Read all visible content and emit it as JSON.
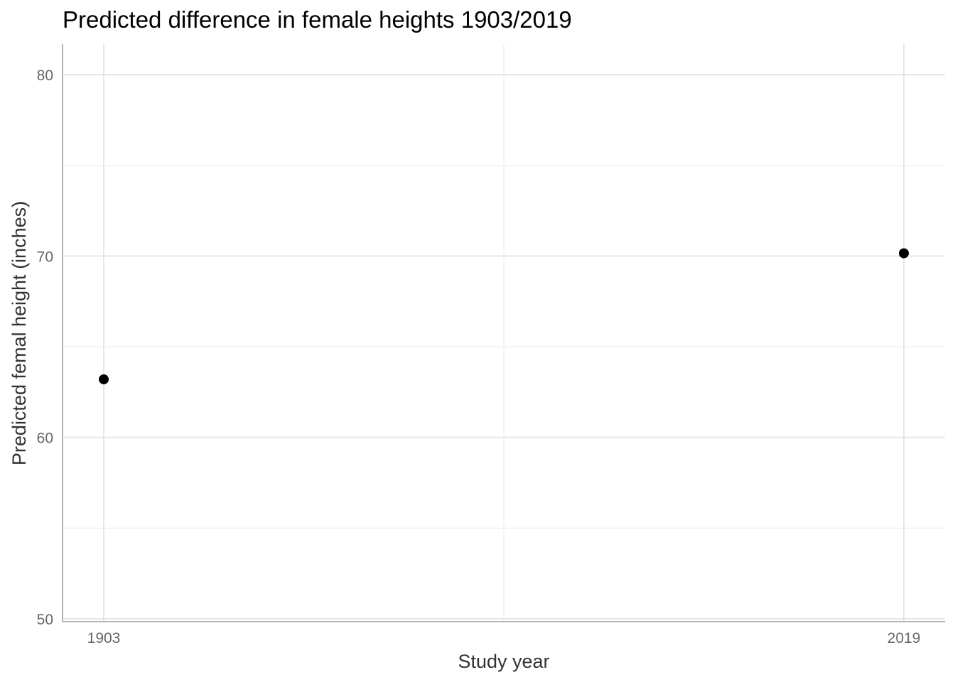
{
  "chart_data": {
    "type": "scatter",
    "title": "Predicted difference in female heights 1903/2019",
    "xlabel": "Study year",
    "ylabel": "Predicted femal height (inches)",
    "x_type": "categorical",
    "categories": [
      "1903",
      "2019"
    ],
    "ylim": [
      50,
      81.5
    ],
    "y_ticks": [
      50,
      60,
      70,
      80
    ],
    "y_minor_ticks": [
      55,
      65,
      75
    ],
    "grid": true,
    "point_color": "#000000",
    "points": [
      {
        "x": "1903",
        "y": 63.2
      },
      {
        "x": "2019",
        "y": 70.15
      }
    ]
  }
}
